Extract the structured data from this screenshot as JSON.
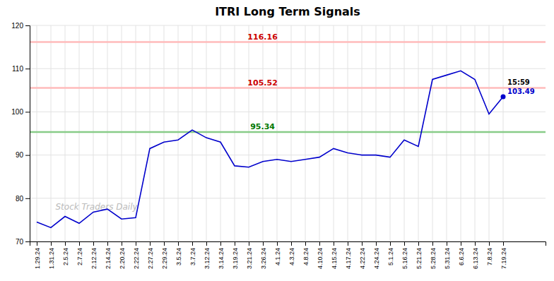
{
  "chart_data": {
    "type": "line",
    "title": "ITRI Long Term Signals",
    "categories": [
      "1.29.24",
      "1.31.24",
      "2.5.24",
      "2.7.24",
      "2.12.24",
      "2.14.24",
      "2.20.24",
      "2.22.24",
      "2.27.24",
      "2.29.24",
      "3.5.24",
      "3.7.24",
      "3.12.24",
      "3.14.24",
      "3.19.24",
      "3.21.24",
      "3.26.24",
      "4.1.24",
      "4.3.24",
      "4.8.24",
      "4.10.24",
      "4.15.24",
      "4.17.24",
      "4.22.24",
      "4.24.24",
      "5.1.24",
      "5.16.24",
      "5.21.24",
      "5.28.24",
      "5.31.24",
      "6.6.24",
      "6.13.24",
      "7.8.24",
      "7.19.24"
    ],
    "values": [
      74.5,
      73.2,
      75.8,
      74.2,
      76.8,
      77.5,
      75.2,
      75.5,
      91.5,
      93.0,
      93.5,
      95.8,
      94.0,
      93.0,
      87.5,
      87.2,
      88.5,
      89.0,
      88.5,
      89.0,
      89.5,
      91.5,
      90.5,
      90.0,
      90.0,
      89.5,
      93.5,
      92.0,
      107.5,
      108.5,
      109.5,
      107.5,
      99.5,
      103.49
    ],
    "color": "#0000cc",
    "reference_lines": [
      {
        "value": 116.16,
        "color": "#ffbbbb",
        "label_color": "#cc0000"
      },
      {
        "value": 105.52,
        "color": "#ffbbbb",
        "label_color": "#cc0000"
      },
      {
        "value": 95.34,
        "color": "#88cc88",
        "label_color": "#007700"
      }
    ],
    "annotations": [
      "15:59",
      "Stock Traders Daily"
    ],
    "ylim": [
      70,
      120
    ],
    "yticks": [
      70,
      80,
      90,
      100,
      110,
      120
    ],
    "grid": true
  }
}
